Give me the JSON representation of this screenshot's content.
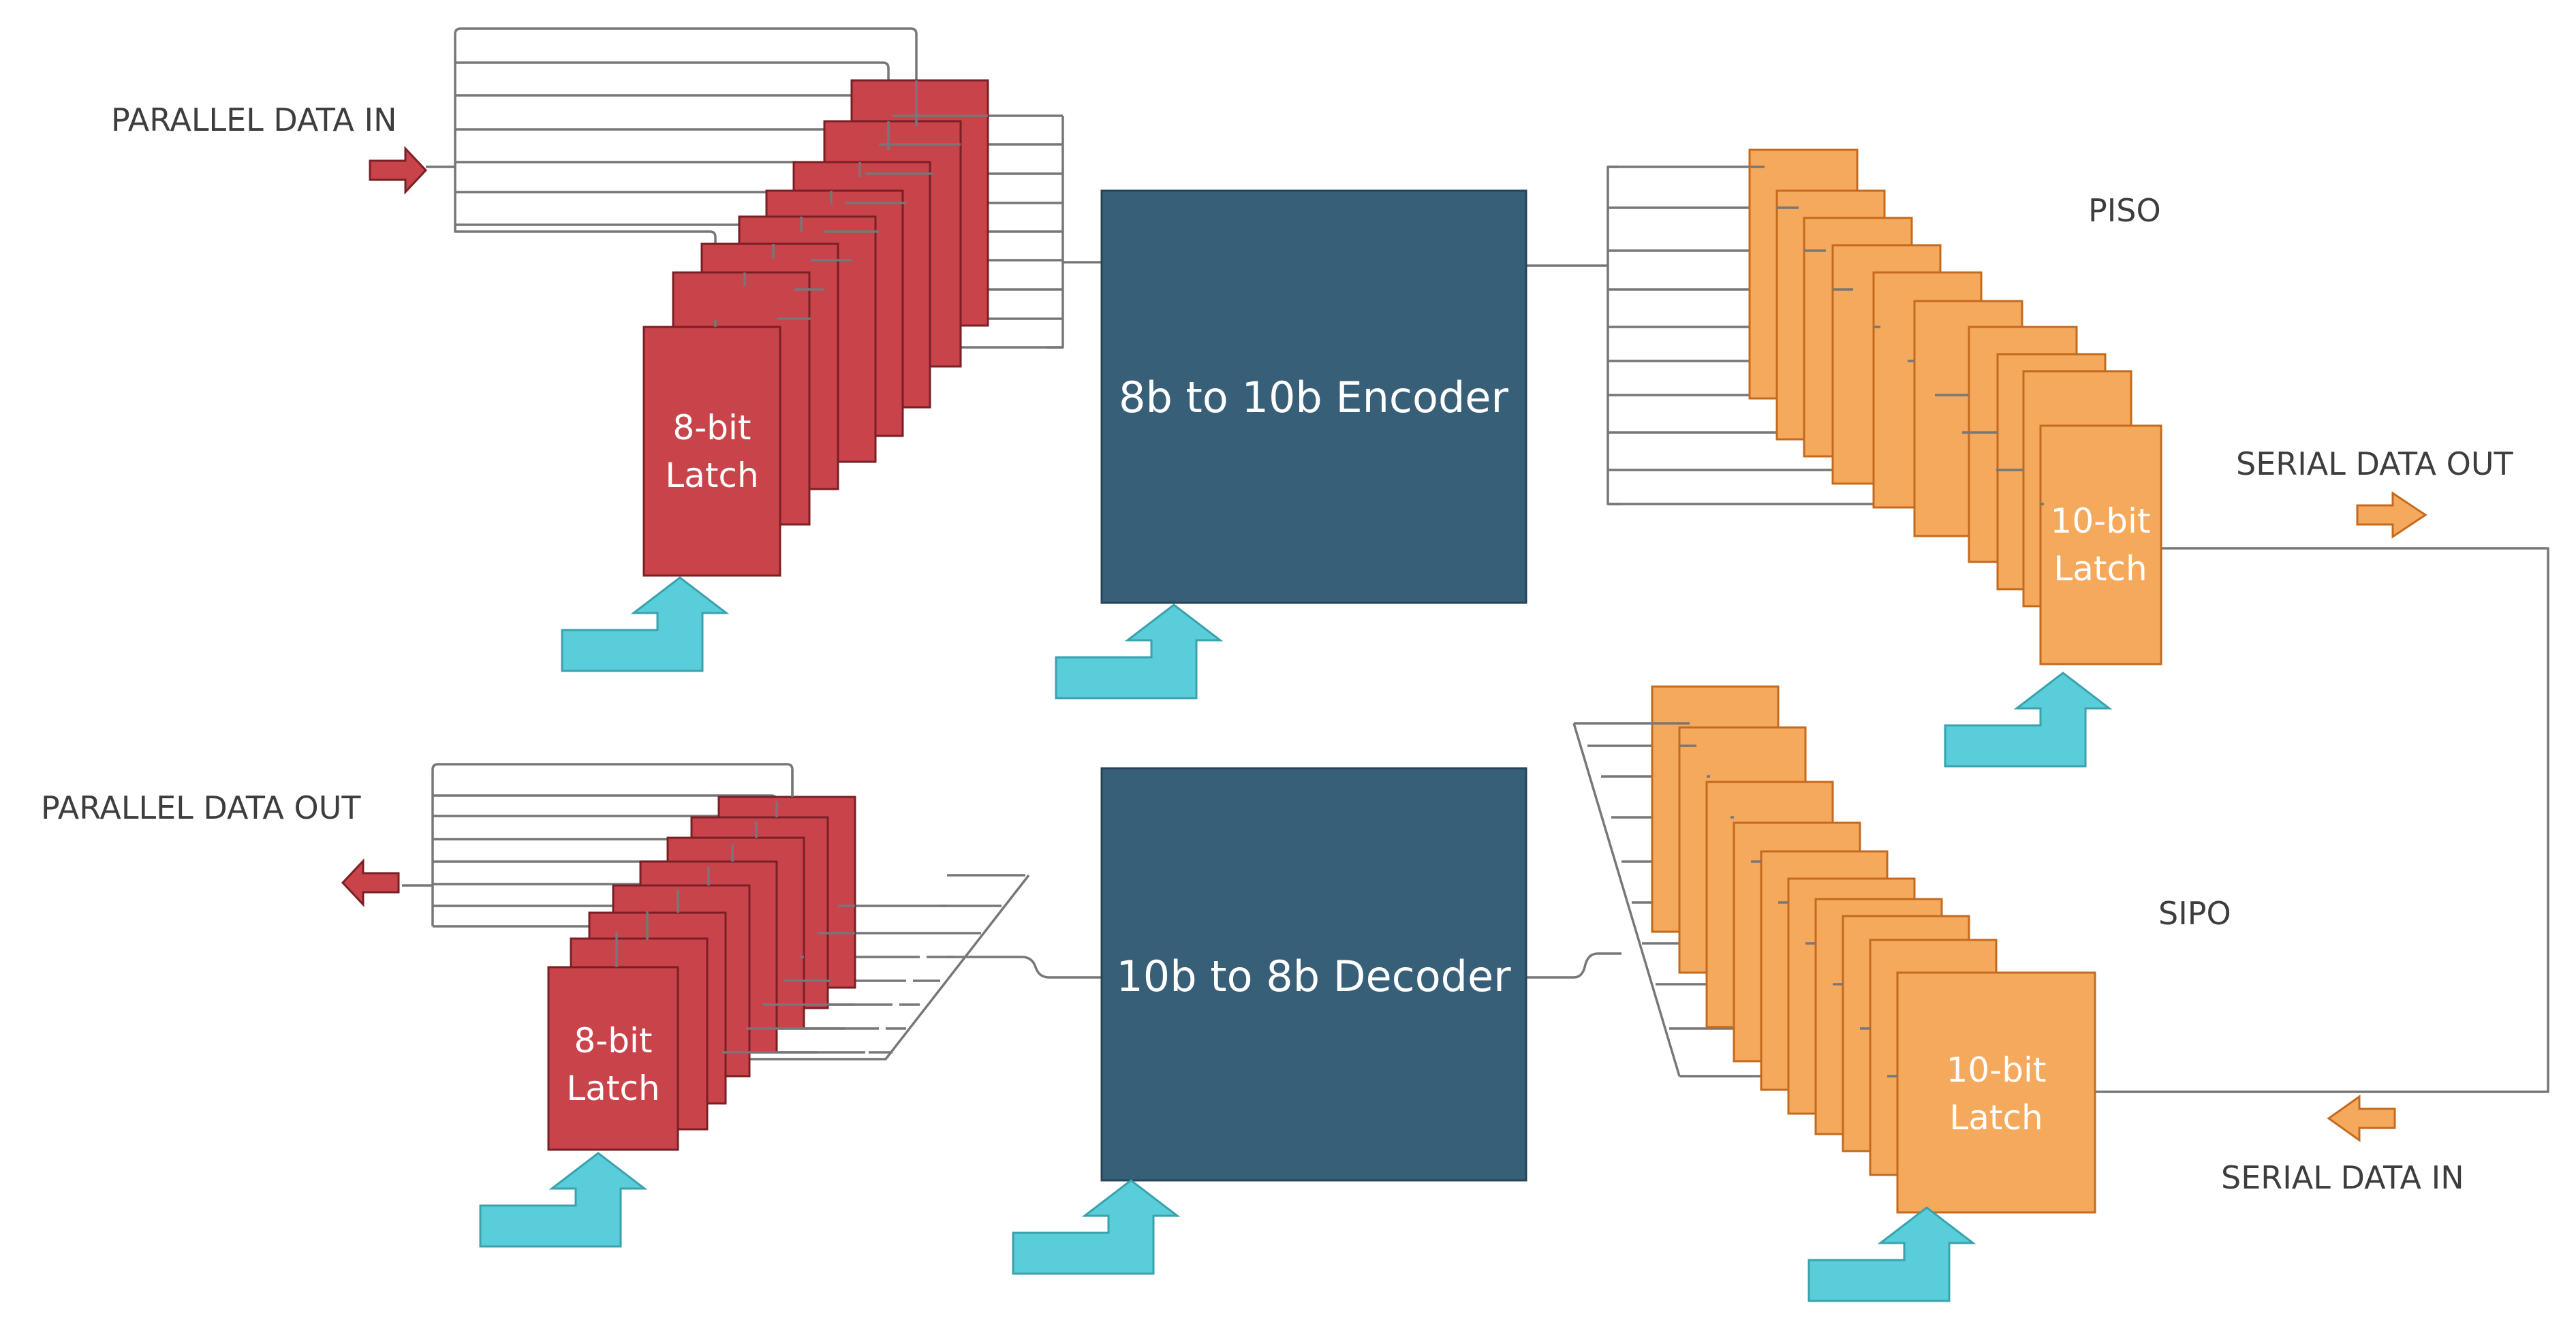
{
  "labels": {
    "parallel_data_in": "PARALLEL DATA IN",
    "parallel_data_out": "PARALLEL DATA OUT",
    "serial_data_out": "SERIAL DATA OUT",
    "serial_data_in": "SERIAL DATA IN",
    "piso": "PISO",
    "sipo": "SIPO"
  },
  "blocks": {
    "encoder": "8b to 10b Encoder",
    "decoder": "10b to 8b Decoder"
  },
  "latches": {
    "tx_8bit": [
      "8-bit",
      "Latch"
    ],
    "rx_8bit": [
      "8-bit",
      "Latch"
    ],
    "piso_10bit": [
      "10-bit",
      "Latch"
    ],
    "sipo_10bit": [
      "10-bit",
      "Latch"
    ]
  },
  "colors": {
    "latch_8bit": "#c9434b",
    "latch_10bit": "#f5a95d",
    "codec_block": "#385f78",
    "clock_arrow": "#59cdd9",
    "wire": "#777777"
  },
  "icons": {
    "clock": "bent-up-arrow",
    "data_direction": "block-arrow"
  },
  "stack_counts": {
    "tx_8bit_cards": 8,
    "rx_8bit_cards": 8,
    "piso_cards": 10,
    "sipo_cards": 10
  }
}
